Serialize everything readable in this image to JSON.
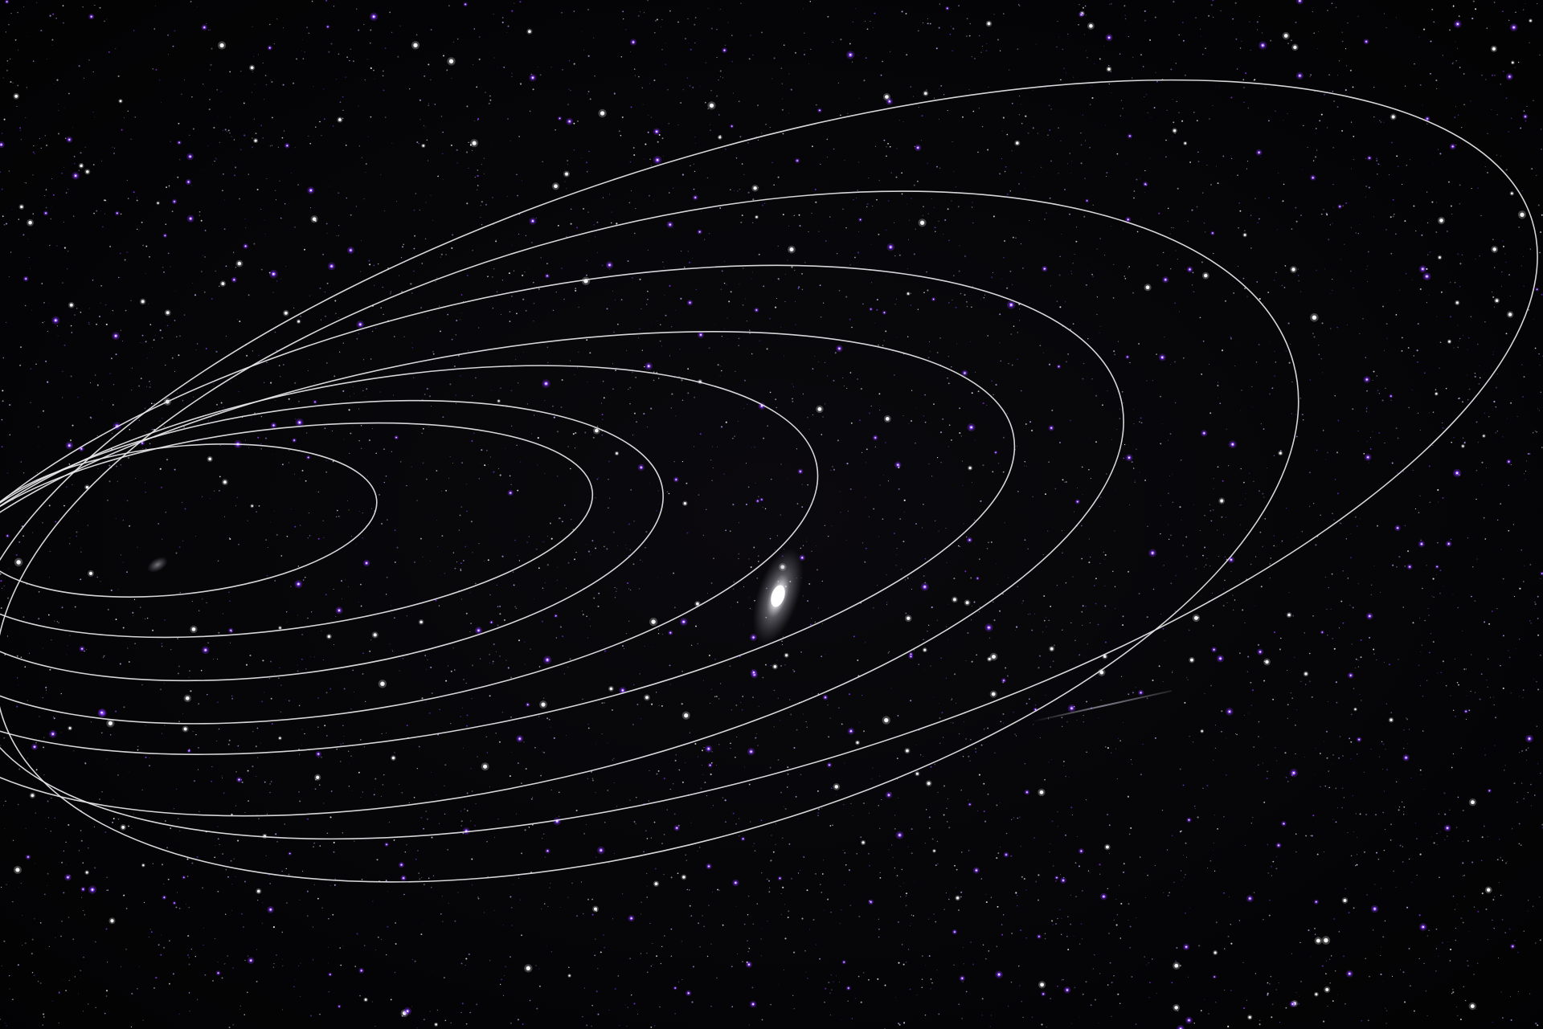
{
  "image": {
    "subject": "starfield-with-orbit-ellipses",
    "colors": {
      "sky": "#050407",
      "star_white": "#ffffff",
      "star_blue": "#b9b4ff",
      "star_violet": "#8a3cff",
      "orbit_line": "#e8e8ec",
      "galaxy_core": "#ffffff",
      "galaxy_halo": "#c9c9d0"
    },
    "orbit_count": 8,
    "highlights": {
      "galaxy": "bright-elliptical-galaxy",
      "meteor": "faint-meteor-streak",
      "faint_galaxy": "small-faint-galaxy"
    }
  }
}
